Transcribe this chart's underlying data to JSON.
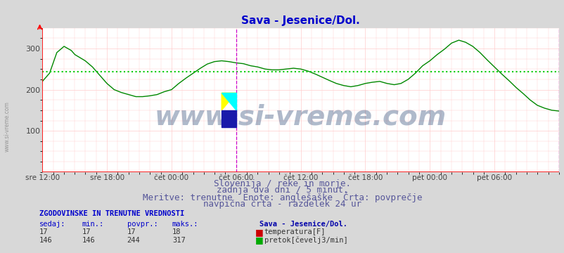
{
  "title": "Sava - Jesenice/Dol.",
  "title_color": "#0000cc",
  "bg_color": "#d8d8d8",
  "plot_bg_color": "#ffffff",
  "x_labels": [
    "sre 12:00",
    "sre 18:00",
    "čet 00:00",
    "čet 06:00",
    "čet 12:00",
    "čet 18:00",
    "pet 00:00",
    "pet 06:00"
  ],
  "x_tick_positions": [
    0.0,
    0.125,
    0.25,
    0.375,
    0.5,
    0.625,
    0.75,
    0.875
  ],
  "ylim": [
    0,
    350
  ],
  "yticks": [
    100,
    200,
    300
  ],
  "grid_color": "#ffcccc",
  "avg_line_color": "#00cc00",
  "avg_line_value": 244,
  "vline_color_magenta": "#cc00cc",
  "flow_line_color": "#008800",
  "temp_line_color": "#cc0000",
  "watermark_text": "www.si-vreme.com",
  "watermark_color": "#1a3a6b",
  "watermark_alpha": 0.35,
  "watermark_fontsize": 28,
  "subtitle_lines": [
    "Slovenija / reke in morje.",
    "zadnja dva dni / 5 minut.",
    "Meritve: trenutne  Enote: anglešaške  Črta: povprečje",
    "navpična črta - razdelek 24 ur"
  ],
  "subtitle_color": "#555599",
  "subtitle_fontsize": 9,
  "table_header": "ZGODOVINSKE IN TRENUTNE VREDNOSTI",
  "table_header_color": "#0000cc",
  "table_cols": [
    "sedaj:",
    "min.:",
    "povpr.:",
    "maks.:"
  ],
  "table_col_color": "#0000cc",
  "station_label": "Sava - Jesenice/Dol.",
  "station_label_color": "#0000aa",
  "row1": [
    17,
    17,
    17,
    18
  ],
  "row2": [
    146,
    146,
    244,
    317
  ],
  "legend_items": [
    {
      "label": "temperatura[F]",
      "color": "#cc0000"
    },
    {
      "label": "pretok[čevelj3/min]",
      "color": "#00aa00"
    }
  ],
  "flow_data_x": [
    0.0,
    0.014,
    0.021,
    0.028,
    0.042,
    0.056,
    0.063,
    0.083,
    0.097,
    0.111,
    0.125,
    0.139,
    0.153,
    0.167,
    0.181,
    0.194,
    0.208,
    0.222,
    0.236,
    0.25,
    0.264,
    0.278,
    0.292,
    0.306,
    0.319,
    0.333,
    0.347,
    0.361,
    0.375,
    0.389,
    0.403,
    0.417,
    0.431,
    0.444,
    0.458,
    0.472,
    0.486,
    0.5,
    0.514,
    0.528,
    0.542,
    0.556,
    0.569,
    0.583,
    0.597,
    0.611,
    0.625,
    0.639,
    0.653,
    0.667,
    0.681,
    0.694,
    0.708,
    0.722,
    0.736,
    0.75,
    0.764,
    0.778,
    0.792,
    0.806,
    0.819,
    0.833,
    0.847,
    0.861,
    0.875,
    0.889,
    0.903,
    0.917,
    0.931,
    0.944,
    0.958,
    0.972,
    0.986,
    1.0
  ],
  "flow_data_y": [
    220,
    240,
    265,
    290,
    305,
    295,
    285,
    270,
    255,
    235,
    215,
    200,
    193,
    188,
    183,
    183,
    185,
    188,
    195,
    200,
    215,
    228,
    240,
    252,
    262,
    268,
    270,
    268,
    265,
    263,
    258,
    255,
    250,
    248,
    248,
    250,
    252,
    250,
    245,
    238,
    230,
    222,
    215,
    210,
    207,
    210,
    215,
    218,
    220,
    215,
    212,
    215,
    225,
    240,
    258,
    270,
    285,
    298,
    313,
    320,
    315,
    305,
    290,
    272,
    255,
    238,
    222,
    205,
    190,
    175,
    162,
    155,
    150,
    148
  ]
}
